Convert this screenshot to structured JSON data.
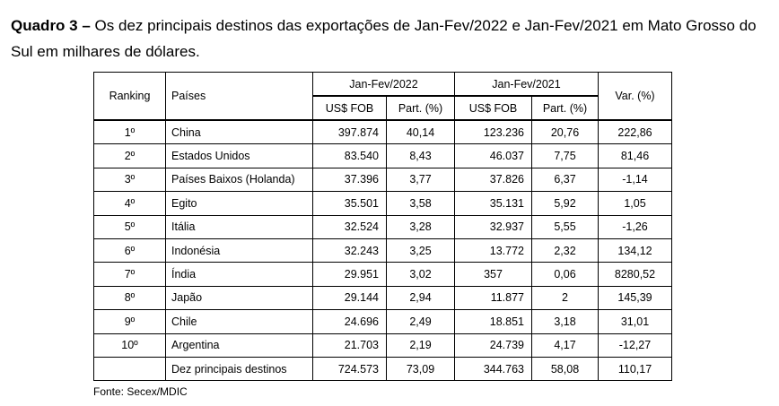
{
  "caption": {
    "label": "Quadro 3 –",
    "text": "Os dez principais destinos das exportações de Jan-Fev/2022 e Jan-Fev/2021 em Mato Grosso do Sul em milhares de dólares."
  },
  "table": {
    "headers": {
      "ranking": "Ranking",
      "paises": "Países",
      "group_2022": "Jan-Fev/2022",
      "group_2021": "Jan-Fev/2021",
      "var": "Var. (%)",
      "fob_2022": "US$ FOB",
      "part_2022": "Part. (%)",
      "fob_2021": "US$ FOB",
      "part_2021": "Part. (%)"
    },
    "rows": [
      {
        "rank": "1º",
        "country": "China",
        "fob_2022": "397.874",
        "part_2022": "40,14",
        "fob_2021": "123.236",
        "part_2021": "20,76",
        "var": "222,86"
      },
      {
        "rank": "2º",
        "country": "Estados Unidos",
        "fob_2022": "83.540",
        "part_2022": "8,43",
        "fob_2021": "46.037",
        "part_2021": "7,75",
        "var": "81,46"
      },
      {
        "rank": "3º",
        "country": "Países Baixos (Holanda)",
        "fob_2022": "37.396",
        "part_2022": "3,77",
        "fob_2021": "37.826",
        "part_2021": "6,37",
        "var": "-1,14"
      },
      {
        "rank": "4º",
        "country": "Egito",
        "fob_2022": "35.501",
        "part_2022": "3,58",
        "fob_2021": "35.131",
        "part_2021": "5,92",
        "var": "1,05"
      },
      {
        "rank": "5º",
        "country": "Itália",
        "fob_2022": "32.524",
        "part_2022": "3,28",
        "fob_2021": "32.937",
        "part_2021": "5,55",
        "var": "-1,26"
      },
      {
        "rank": "6º",
        "country": "Indonésia",
        "fob_2022": "32.243",
        "part_2022": "3,25",
        "fob_2021": "13.772",
        "part_2021": "2,32",
        "var": "134,12"
      },
      {
        "rank": "7º",
        "country": "Índia",
        "fob_2022": "29.951",
        "part_2022": "3,02",
        "fob_2021": "357",
        "part_2021": "0,06",
        "var": "8280,52"
      },
      {
        "rank": "8º",
        "country": "Japão",
        "fob_2022": "29.144",
        "part_2022": "2,94",
        "fob_2021": "11.877",
        "part_2021": "2",
        "var": "145,39"
      },
      {
        "rank": "9º",
        "country": "Chile",
        "fob_2022": "24.696",
        "part_2022": "2,49",
        "fob_2021": "18.851",
        "part_2021": "3,18",
        "var": "31,01"
      },
      {
        "rank": "10º",
        "country": "Argentina",
        "fob_2022": "21.703",
        "part_2022": "2,19",
        "fob_2021": "24.739",
        "part_2021": "4,17",
        "var": "-12,27"
      }
    ],
    "total": {
      "rank": "",
      "country": "Dez principais destinos",
      "fob_2022": "724.573",
      "part_2022": "73,09",
      "fob_2021": "344.763",
      "part_2021": "58,08",
      "var": "110,17"
    }
  },
  "source": "Fonte: Secex/MDIC"
}
